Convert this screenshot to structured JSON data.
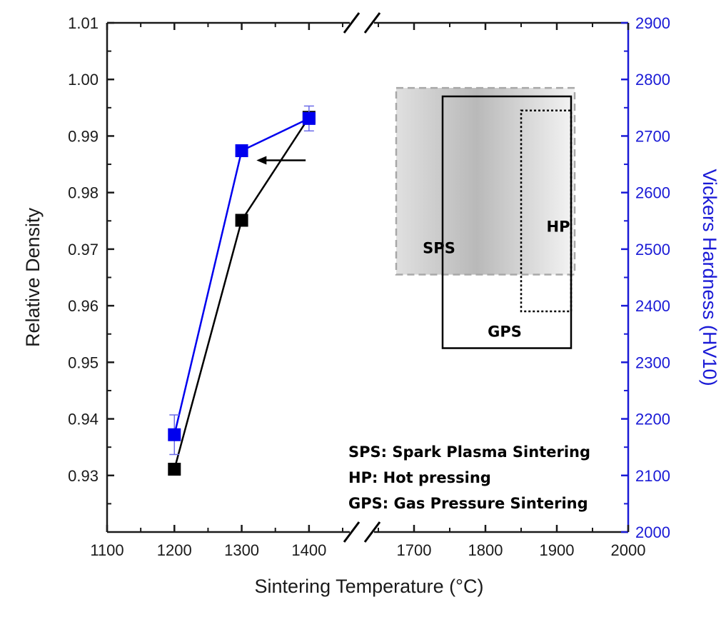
{
  "chart_data": {
    "type": "line",
    "xlabel": "Sintering Temperature (°C)",
    "ylabel_left": "Relative Density",
    "ylabel_right": "Vickers Hardness (HV10)",
    "x_ticks": [
      1100,
      1200,
      1300,
      1400,
      1700,
      1800,
      1900,
      2000
    ],
    "x_segments": [
      [
        1100,
        1450
      ],
      [
        1650,
        2000
      ]
    ],
    "y_left_range": [
      0.92,
      1.01
    ],
    "y_left_ticks": [
      "0.93",
      "0.94",
      "0.95",
      "0.96",
      "0.97",
      "0.98",
      "0.99",
      "1.00",
      "1.01"
    ],
    "y_right_range": [
      2000,
      2900
    ],
    "y_right_ticks": [
      2000,
      2100,
      2200,
      2300,
      2400,
      2500,
      2600,
      2700,
      2800,
      2900
    ],
    "series": [
      {
        "axis": "left",
        "color": "#000000",
        "marker": "square",
        "points": [
          {
            "x": 1200,
            "y": 0.9311
          },
          {
            "x": 1300,
            "y": 0.9751
          },
          {
            "x": 1400,
            "y": 0.9933
          }
        ]
      },
      {
        "axis": "left",
        "color": "#0000ee",
        "marker": "square",
        "points": [
          {
            "x": 1200,
            "y": 0.9372,
            "err": 0.0035
          },
          {
            "x": 1300,
            "y": 0.9874,
            "err": 0.001
          },
          {
            "x": 1400,
            "y": 0.9931,
            "err": 0.0022
          }
        ]
      }
    ],
    "regions": [
      {
        "label": "SPS",
        "x": [
          1675,
          1925
        ],
        "hv": [
          2455,
          2785
        ],
        "style": "gray-dashed"
      },
      {
        "label": "GPS",
        "x": [
          1740,
          1920
        ],
        "hv": [
          2325,
          2770
        ],
        "style": "solid"
      },
      {
        "label": "HP",
        "x": [
          1850,
          1920
        ],
        "hv": [
          2390,
          2745
        ],
        "style": "dotted"
      }
    ],
    "legend_lines": [
      "SPS: Spark Plasma Sintering",
      "HP: Hot pressing",
      "GPS: Gas Pressure Sintering"
    ],
    "colors": {
      "axis": "#1a1a1a",
      "right_axis": "#1a1ad6",
      "blue_series": "#0000ee",
      "black_series": "#000000",
      "region_gray": "#a8a8a8"
    }
  }
}
